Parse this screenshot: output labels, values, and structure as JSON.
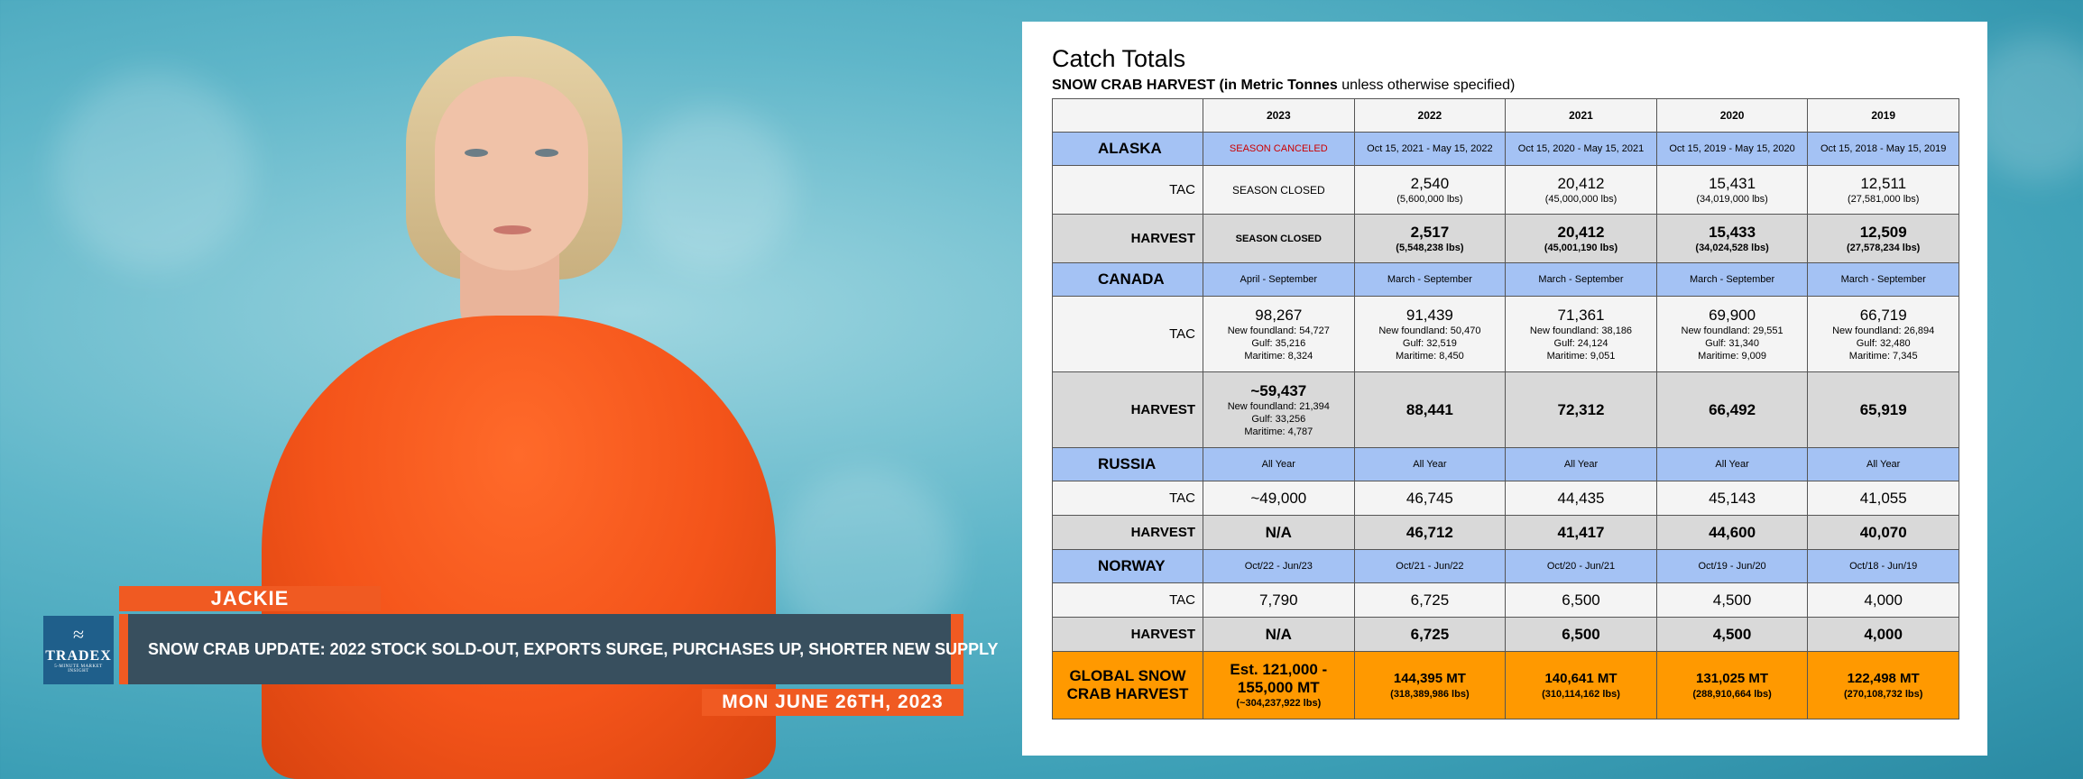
{
  "presenter": {
    "name": "JACKIE"
  },
  "lower_third": {
    "headline": "SNOW CRAB UPDATE: 2022 STOCK SOLD-OUT, EXPORTS SURGE, PURCHASES UP, SHORTER NEW SUPPLY",
    "date": "MON JUNE 26TH, 2023"
  },
  "logo": {
    "word": "TRADEX",
    "sub": "5-MINUTE MARKET INSIGHT"
  },
  "table": {
    "title": "Catch Totals",
    "subtitle_bold": "SNOW CRAB HARVEST",
    "subtitle_paren_bold": "(in Metric Tonnes",
    "subtitle_rest": "unless otherwise specified)",
    "years": [
      "2023",
      "2022",
      "2021",
      "2020",
      "2019"
    ],
    "alaska": {
      "name": "ALASKA",
      "periods": [
        "SEASON CANCELED",
        "Oct 15, 2021 - May 15, 2022",
        "Oct 15, 2020 - May 15, 2021",
        "Oct 15, 2019 - May 15, 2020",
        "Oct 15, 2018 - May 15, 2019"
      ],
      "tac_label": "TAC",
      "tac": [
        {
          "main": "SEASON CLOSED",
          "sub": ""
        },
        {
          "main": "2,540",
          "sub": "(5,600,000 lbs)"
        },
        {
          "main": "20,412",
          "sub": "(45,000,000 lbs)"
        },
        {
          "main": "15,431",
          "sub": "(34,019,000 lbs)"
        },
        {
          "main": "12,511",
          "sub": "(27,581,000 lbs)"
        }
      ],
      "harvest_label": "HARVEST",
      "harvest": [
        {
          "main": "SEASON CLOSED",
          "sub": ""
        },
        {
          "main": "2,517",
          "sub": "(5,548,238 lbs)"
        },
        {
          "main": "20,412",
          "sub": "(45,001,190 lbs)"
        },
        {
          "main": "15,433",
          "sub": "(34,024,528 lbs)"
        },
        {
          "main": "12,509",
          "sub": "(27,578,234 lbs)"
        }
      ]
    },
    "canada": {
      "name": "CANADA",
      "periods": [
        "April - September",
        "March - September",
        "March - September",
        "March - September",
        "March - September"
      ],
      "tac_label": "TAC",
      "tac": [
        {
          "main": "98,267",
          "l1": "New foundland: 54,727",
          "l2": "Gulf: 35,216",
          "l3": "Maritime: 8,324"
        },
        {
          "main": "91,439",
          "l1": "New foundland: 50,470",
          "l2": "Gulf: 32,519",
          "l3": "Maritime: 8,450"
        },
        {
          "main": "71,361",
          "l1": "New foundland: 38,186",
          "l2": "Gulf: 24,124",
          "l3": "Maritime: 9,051"
        },
        {
          "main": "69,900",
          "l1": "New foundland: 29,551",
          "l2": "Gulf: 31,340",
          "l3": "Maritime: 9,009"
        },
        {
          "main": "66,719",
          "l1": "New foundland: 26,894",
          "l2": "Gulf: 32,480",
          "l3": "Maritime: 7,345"
        }
      ],
      "harvest_label": "HARVEST",
      "harvest_first": {
        "main": "~59,437",
        "l1": "New foundland: 21,394",
        "l2": "Gulf: 33,256",
        "l3": "Maritime: 4,787"
      },
      "harvest": [
        "88,441",
        "72,312",
        "66,492",
        "65,919"
      ]
    },
    "russia": {
      "name": "RUSSIA",
      "periods": [
        "All Year",
        "All Year",
        "All Year",
        "All Year",
        "All Year"
      ],
      "tac_label": "TAC",
      "tac": [
        "~49,000",
        "46,745",
        "44,435",
        "45,143",
        "41,055"
      ],
      "harvest_label": "HARVEST",
      "harvest": [
        "N/A",
        "46,712",
        "41,417",
        "44,600",
        "40,070"
      ]
    },
    "norway": {
      "name": "NORWAY",
      "periods": [
        "Oct/22 - Jun/23",
        "Oct/21 - Jun/22",
        "Oct/20 - Jun/21",
        "Oct/19 - Jun/20",
        "Oct/18 - Jun/19"
      ],
      "tac_label": "TAC",
      "tac": [
        "7,790",
        "6,725",
        "6,500",
        "4,500",
        "4,000"
      ],
      "harvest_label": "HARVEST",
      "harvest": [
        "N/A",
        "6,725",
        "6,500",
        "4,500",
        "4,000"
      ]
    },
    "global": {
      "label_l1": "GLOBAL SNOW",
      "label_l2": "CRAB HARVEST",
      "first": {
        "l1": "Est. 121,000 -",
        "l2": "155,000 MT",
        "sub": "(~304,237,922 lbs)"
      },
      "values": [
        {
          "main": "144,395 MT",
          "sub": "(318,389,986 lbs)"
        },
        {
          "main": "140,641 MT",
          "sub": "(310,114,162 lbs)"
        },
        {
          "main": "131,025 MT",
          "sub": "(288,910,664 lbs)"
        },
        {
          "main": "122,498 MT",
          "sub": "(270,108,732 lbs)"
        }
      ]
    }
  }
}
